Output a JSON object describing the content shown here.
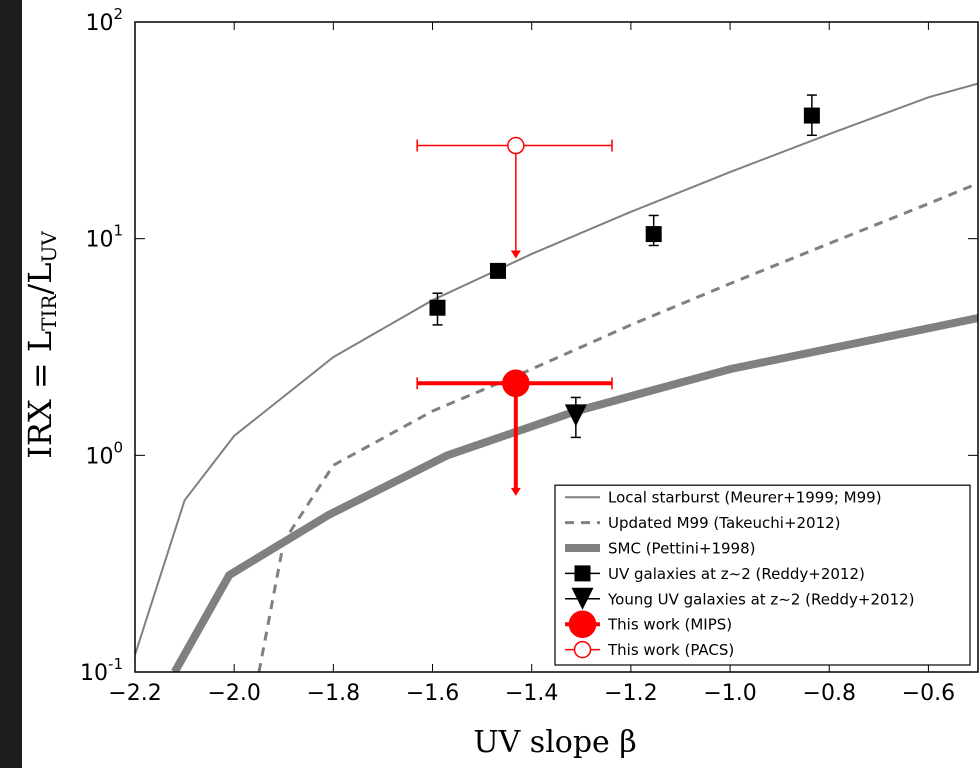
{
  "chart_data": {
    "type": "line",
    "xlabel": "UV slope β",
    "ylabel_parts": [
      "IRX = L",
      "TIR",
      "/L",
      "UV"
    ],
    "xlim": [
      -2.2,
      -0.5
    ],
    "ylim": [
      0.1,
      100
    ],
    "log_y": true,
    "legend": "lower right",
    "xticks": [
      {
        "value": -2.2,
        "label": "−2.2"
      },
      {
        "value": -2.0,
        "label": "−2.0"
      },
      {
        "value": -1.8,
        "label": "−1.8"
      },
      {
        "value": -1.6,
        "label": "−1.6"
      },
      {
        "value": -1.4,
        "label": "−1.4"
      },
      {
        "value": -1.2,
        "label": "−1.2"
      },
      {
        "value": -1.0,
        "label": "−1.0"
      },
      {
        "value": -0.8,
        "label": "−0.8"
      },
      {
        "value": -0.6,
        "label": "−0.6"
      }
    ],
    "yticks": [
      {
        "value": 0.1,
        "label": "10",
        "sup": "-1"
      },
      {
        "value": 1,
        "label": "10",
        "sup": "0"
      },
      {
        "value": 10,
        "label": "10",
        "sup": "1"
      },
      {
        "value": 100,
        "label": "10",
        "sup": "2"
      }
    ],
    "series": [
      {
        "name": "Local starburst (Meurer+1999; M99)",
        "kind": "line",
        "linestyle": "solid",
        "color": "#808080",
        "x": [
          -2.2,
          -2.1,
          -2.0,
          -1.8,
          -1.6,
          -1.4,
          -1.2,
          -1.0,
          -0.8,
          -0.6,
          -0.5
        ],
        "values": [
          0.12,
          0.62,
          1.23,
          2.84,
          5.2,
          8.5,
          13.3,
          20.3,
          30.4,
          44.9,
          52
        ]
      },
      {
        "name": "Updated M99 (Takeuchi+2012)",
        "kind": "line",
        "linestyle": "dashed",
        "color": "#808080",
        "x": [
          -1.95,
          -1.9,
          -1.8,
          -1.6,
          -1.4,
          -1.2,
          -1.0,
          -0.8,
          -0.6,
          -0.5
        ],
        "values": [
          0.1,
          0.4,
          0.9,
          1.6,
          2.5,
          4.0,
          6.2,
          9.5,
          14.5,
          18
        ]
      },
      {
        "name": "SMC (Pettini+1998)",
        "kind": "line",
        "linestyle": "thick",
        "color": "#808080",
        "x": [
          -2.12,
          -2.01,
          -1.81,
          -1.57,
          -1.31,
          -1.0,
          -0.5
        ],
        "values": [
          0.1,
          0.28,
          0.53,
          1.0,
          1.6,
          2.5,
          4.3
        ]
      },
      {
        "name": "UV galaxies at z∼2 (Reddy+2012)",
        "kind": "points",
        "marker": "square",
        "color": "#000000",
        "x": [
          -1.59,
          -1.468,
          -1.154,
          -0.835
        ],
        "values": [
          4.8,
          7.1,
          10.5,
          37
        ],
        "ylow": [
          4.0,
          7.1,
          9.3,
          30
        ],
        "yhigh": [
          5.6,
          7.1,
          12.8,
          46
        ]
      },
      {
        "name": "Young UV galaxies at z∼2 (Reddy+2012)",
        "kind": "points",
        "marker": "triangle",
        "color": "#000000",
        "x": [
          -1.311
        ],
        "values": [
          1.53
        ],
        "ylow": [
          1.21
        ],
        "yhigh": [
          1.85
        ]
      },
      {
        "name": "This work (MIPS)",
        "kind": "points",
        "marker": "circle",
        "filled": true,
        "color": "#ff0000",
        "x": [
          -1.432
        ],
        "values": [
          2.15
        ],
        "xlow": [
          -1.631
        ],
        "xhigh": [
          -1.238
        ],
        "limit_to": [
          0.65
        ]
      },
      {
        "name": "This work (PACS)",
        "kind": "points",
        "marker": "circle",
        "filled": false,
        "color": "#ff0000",
        "x": [
          -1.432
        ],
        "values": [
          26.9
        ],
        "xlow": [
          -1.631
        ],
        "xhigh": [
          -1.238
        ],
        "limit_to": [
          8.1
        ]
      }
    ]
  }
}
